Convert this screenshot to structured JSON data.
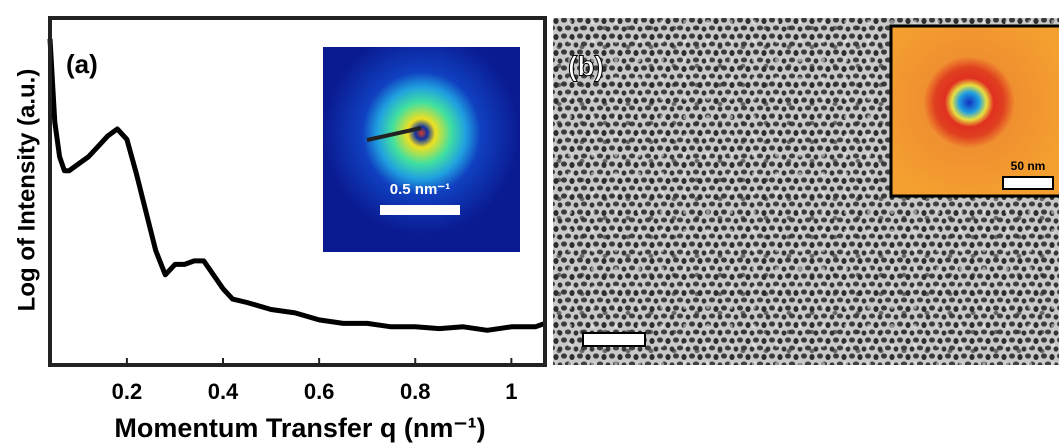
{
  "chart_data": {
    "type": "line",
    "panel_label": "(a)",
    "x_label": "Momentum Transfer q (nm⁻¹)",
    "y_label": "Log of Intensity (a.u.)",
    "inset_scale_label": "0.5 nm⁻¹",
    "x": [
      0.04,
      0.05,
      0.06,
      0.07,
      0.08,
      0.1,
      0.12,
      0.14,
      0.16,
      0.18,
      0.2,
      0.22,
      0.24,
      0.26,
      0.28,
      0.3,
      0.32,
      0.34,
      0.36,
      0.38,
      0.4,
      0.42,
      0.45,
      0.5,
      0.55,
      0.6,
      0.65,
      0.7,
      0.75,
      0.8,
      0.85,
      0.9,
      0.95,
      1.0,
      1.05,
      1.07
    ],
    "series": [
      {
        "color": "#000000",
        "values": [
          0.94,
          0.7,
          0.6,
          0.56,
          0.56,
          0.58,
          0.6,
          0.63,
          0.66,
          0.68,
          0.65,
          0.55,
          0.44,
          0.33,
          0.26,
          0.29,
          0.29,
          0.3,
          0.3,
          0.26,
          0.22,
          0.19,
          0.18,
          0.16,
          0.15,
          0.13,
          0.12,
          0.12,
          0.11,
          0.11,
          0.105,
          0.11,
          0.1,
          0.11,
          0.11,
          0.12
        ]
      }
    ],
    "xlim": [
      0.04,
      1.07
    ],
    "ylim": [
      0,
      1
    ],
    "xticks": [
      0.2,
      0.4,
      0.6,
      0.8,
      1
    ]
  },
  "panel_b": {
    "label": "(b)",
    "inset_scale_label": "50 nm"
  }
}
